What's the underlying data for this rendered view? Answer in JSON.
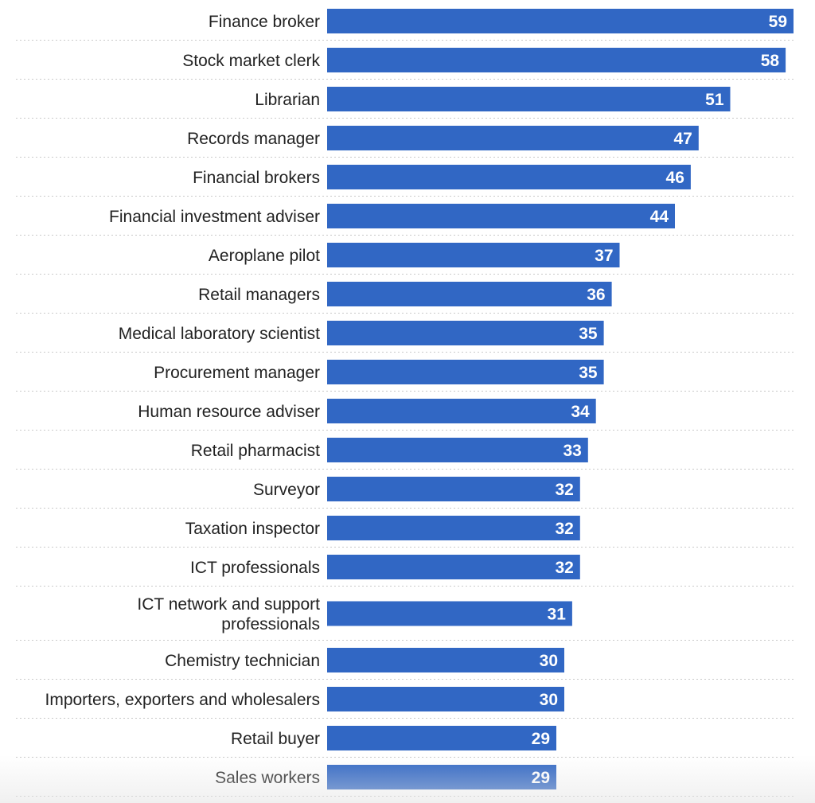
{
  "chart_data": {
    "type": "bar",
    "orientation": "horizontal",
    "categories": [
      "Finance broker",
      "Stock market clerk",
      "Librarian",
      "Records manager",
      "Financial brokers",
      "Financial investment adviser",
      "Aeroplane pilot",
      "Retail managers",
      "Medical laboratory scientist",
      "Procurement manager",
      "Human resource adviser",
      "Retail pharmacist",
      "Surveyor",
      "Taxation inspector",
      "ICT professionals",
      "ICT network and support professionals",
      "Chemistry technician",
      "Importers, exporters and wholesalers",
      "Retail buyer",
      "Sales workers"
    ],
    "category_lines": [
      [
        "Finance broker"
      ],
      [
        "Stock market clerk"
      ],
      [
        "Librarian"
      ],
      [
        "Records manager"
      ],
      [
        "Financial brokers"
      ],
      [
        "Financial investment adviser"
      ],
      [
        "Aeroplane pilot"
      ],
      [
        "Retail managers"
      ],
      [
        "Medical laboratory scientist"
      ],
      [
        "Procurement manager"
      ],
      [
        "Human resource adviser"
      ],
      [
        "Retail pharmacist"
      ],
      [
        "Surveyor"
      ],
      [
        "Taxation inspector"
      ],
      [
        "ICT professionals"
      ],
      [
        "ICT network and support",
        "professionals"
      ],
      [
        "Chemistry technician"
      ],
      [
        "Importers, exporters and wholesalers"
      ],
      [
        "Retail buyer"
      ],
      [
        "Sales workers"
      ]
    ],
    "values": [
      59,
      58,
      51,
      47,
      46,
      44,
      37,
      36,
      35,
      35,
      34,
      33,
      32,
      32,
      32,
      31,
      30,
      30,
      29,
      29
    ],
    "value_labels": [
      "59",
      "58",
      "51",
      "47",
      "46",
      "44",
      "37",
      "36",
      "35",
      "35",
      "34",
      "33",
      "32",
      "32",
      "32",
      "31",
      "30",
      "30",
      "29",
      "29"
    ],
    "xlim": [
      0,
      59
    ],
    "bar_color": "#3167c4",
    "grid": false,
    "title": "",
    "xlabel": "",
    "ylabel": ""
  }
}
